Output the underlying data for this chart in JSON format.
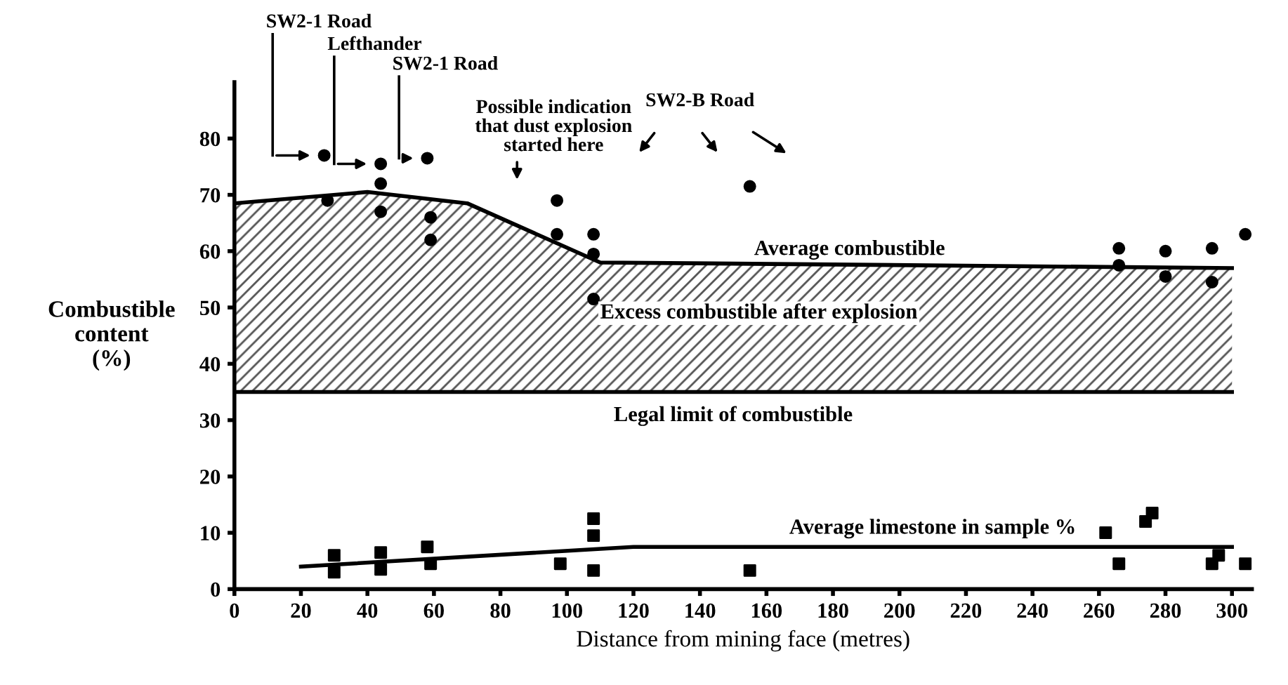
{
  "chart_data": {
    "type": "scatter",
    "xlabel": "Distance from mining face (metres)",
    "ylabel": "Combustible\ncontent\n(%)",
    "xlim": [
      0,
      306
    ],
    "ylim": [
      0,
      90
    ],
    "xticks": [
      0,
      20,
      40,
      60,
      80,
      100,
      120,
      140,
      160,
      180,
      200,
      220,
      240,
      260,
      280,
      300
    ],
    "yticks": [
      0,
      10,
      20,
      30,
      40,
      50,
      60,
      70,
      80
    ],
    "grid": false,
    "series": [
      {
        "marker": "circle",
        "color": "#000000",
        "x": [
          27,
          28,
          44,
          44,
          44,
          58,
          59,
          59,
          97,
          97,
          108,
          108,
          108,
          155,
          266,
          266,
          280,
          280,
          294,
          294,
          304
        ],
        "values": [
          77,
          69,
          75.5,
          72,
          67,
          76.5,
          66,
          62,
          69,
          63,
          63,
          59.5,
          51.5,
          71.5,
          60.5,
          57.5,
          60,
          55.5,
          60.5,
          54.5,
          63
        ]
      },
      {
        "type": "area",
        "name": "Average combustible",
        "color": "#000000",
        "x": [
          0,
          40,
          70,
          110,
          300
        ],
        "values": [
          68.5,
          70.5,
          68.5,
          58,
          57
        ]
      },
      {
        "type": "scatter",
        "marker": "square",
        "color": "#000000",
        "x": [
          30,
          30,
          44,
          44,
          58,
          59,
          98,
          108,
          108,
          108,
          155,
          262,
          266,
          274,
          276,
          294,
          296,
          304
        ],
        "values": [
          6,
          3,
          6.5,
          3.5,
          7.5,
          4.5,
          4.5,
          12.5,
          9.5,
          3.3,
          3.3,
          10,
          4.5,
          12,
          13.5,
          4.5,
          6,
          4.5
        ]
      },
      {
        "type": "line",
        "name": "Average limestone in sample %",
        "color": "#000000",
        "x": [
          20,
          120,
          300
        ],
        "values": [
          4,
          7.5,
          7.5
        ]
      }
    ],
    "ref_lines": [
      {
        "axis": "y",
        "value": 35,
        "label": "Legal limit of combustible",
        "color": "#000000"
      }
    ],
    "annotations": [
      "SW2-1 Road",
      "Lefthander",
      "SW2-1 Road",
      "Possible indication\nthat dust explosion\nstarted here",
      "SW2-B Road",
      "Excess combustible after explosion"
    ]
  }
}
